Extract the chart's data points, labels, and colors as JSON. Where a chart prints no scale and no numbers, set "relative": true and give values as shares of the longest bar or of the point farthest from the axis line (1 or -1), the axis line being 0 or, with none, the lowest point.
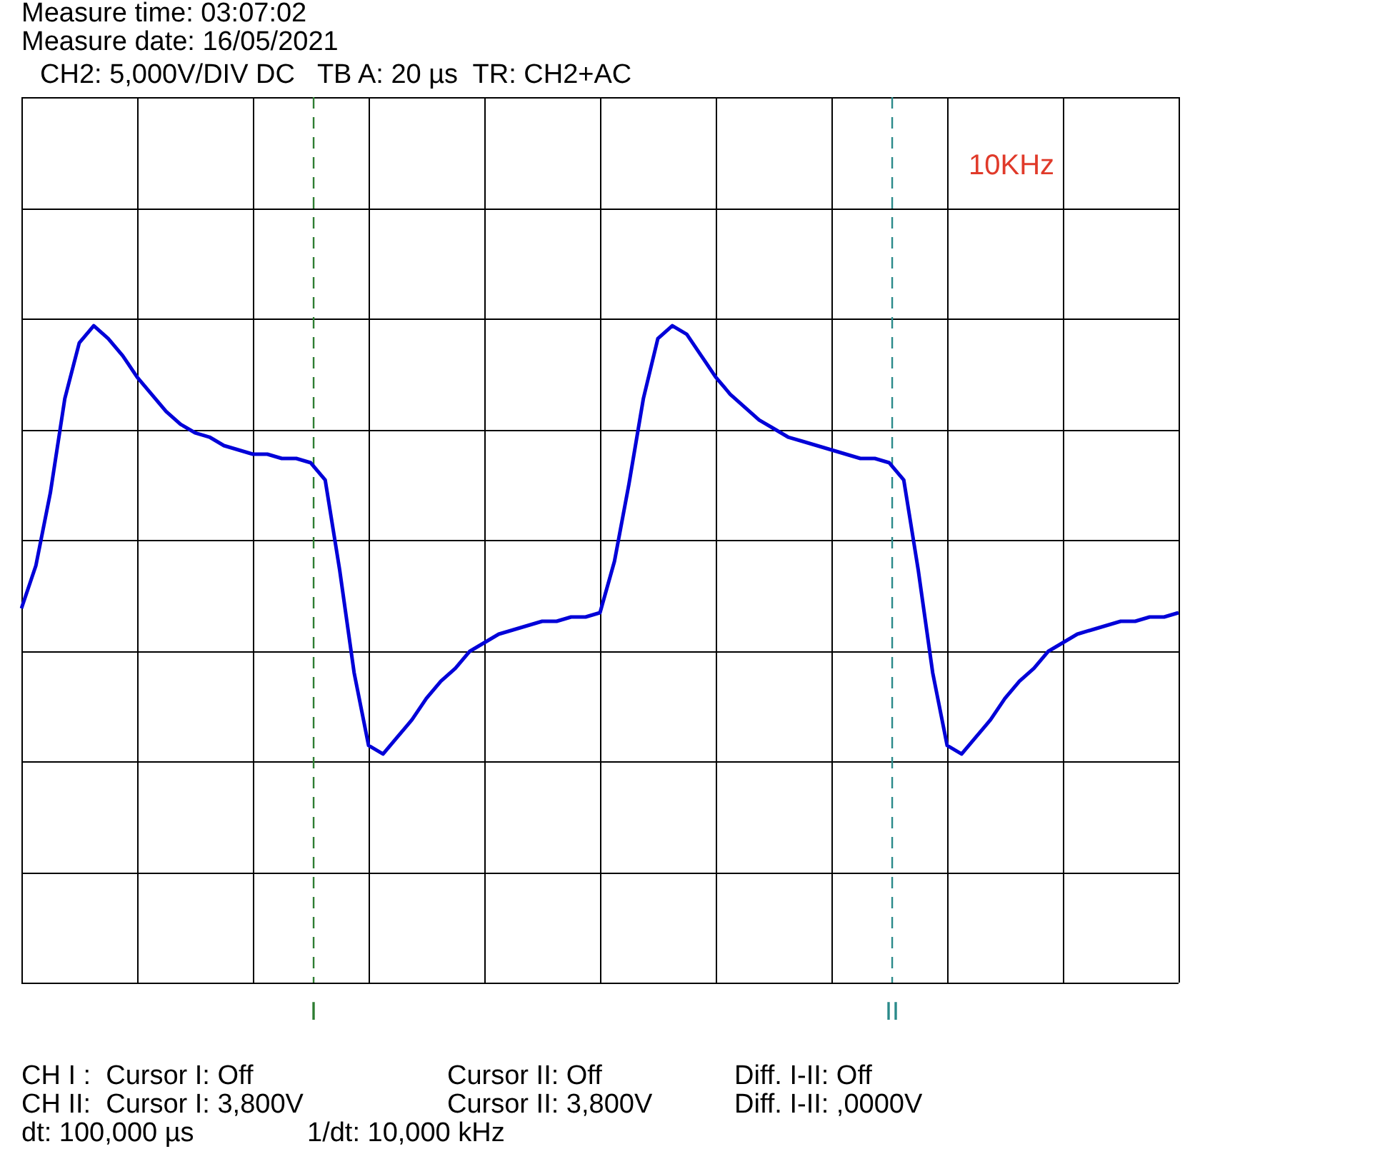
{
  "chart_data": {
    "type": "line",
    "title": "Measure time: 03:07:02",
    "subtitle": "Measure date: 16/05/2021",
    "relative": true,
    "grid": true,
    "legend": false,
    "marker": "none",
    "line_style": "solid",
    "categories": [
      null,
      null,
      null,
      null,
      null,
      null,
      null,
      null,
      null,
      null,
      null,
      null,
      null,
      null,
      null,
      null,
      null,
      null,
      null,
      null,
      null,
      null,
      null,
      null,
      null,
      null,
      null,
      null,
      null,
      null,
      null,
      null,
      null,
      null,
      null,
      null,
      null,
      null,
      null,
      null,
      null,
      null,
      null,
      null,
      null,
      null,
      null,
      null,
      null,
      null,
      null,
      null,
      null,
      null,
      null,
      null,
      null,
      null,
      null,
      null,
      null,
      null,
      null,
      null,
      null,
      null,
      null,
      null,
      null,
      null,
      null,
      null,
      null,
      null,
      null,
      null,
      null,
      null,
      null,
      null,
      null
    ],
    "series": [
      {
        "color": "#0000d8",
        "values": [
          -0.32,
          -0.12,
          0.22,
          0.66,
          0.92,
          1,
          0.94,
          0.86,
          0.76,
          0.68,
          0.6,
          0.54,
          0.5,
          0.48,
          0.44,
          0.42,
          0.4,
          0.4,
          0.38,
          0.38,
          0.36,
          0.28,
          -0.14,
          -0.62,
          -0.96,
          -1,
          -0.92,
          -0.84,
          -0.74,
          -0.66,
          -0.6,
          -0.52,
          -0.48,
          -0.44,
          -0.42,
          -0.4,
          -0.38,
          -0.38,
          -0.36,
          -0.36,
          -0.34,
          -0.1,
          0.26,
          0.66,
          0.94,
          1,
          0.96,
          0.86,
          0.76,
          0.68,
          0.62,
          0.56,
          0.52,
          0.48,
          0.46,
          0.44,
          0.42,
          0.4,
          0.38,
          0.38,
          0.36,
          0.28,
          -0.14,
          -0.62,
          -0.96,
          -1,
          -0.92,
          -0.84,
          -0.74,
          -0.66,
          -0.6,
          -0.52,
          -0.48,
          -0.44,
          -0.42,
          -0.4,
          -0.38,
          -0.38,
          -0.36,
          -0.36,
          -0.34
        ]
      }
    ],
    "annotations": [
      "CH2: 5,000V/DIV DC   TB A: 20 µs  TR: CH2+AC",
      "10KHz",
      "CH I :  Cursor I: Off",
      "Cursor II: Off",
      "Diff. I-II: Off",
      "CH II:  Cursor I: 3,800V",
      "Cursor II: 3,800V",
      "Diff. I-II: ,0000V",
      "dt: 100,000 µs",
      "1/dt: 10,000 kHz",
      "I",
      "II"
    ]
  }
}
